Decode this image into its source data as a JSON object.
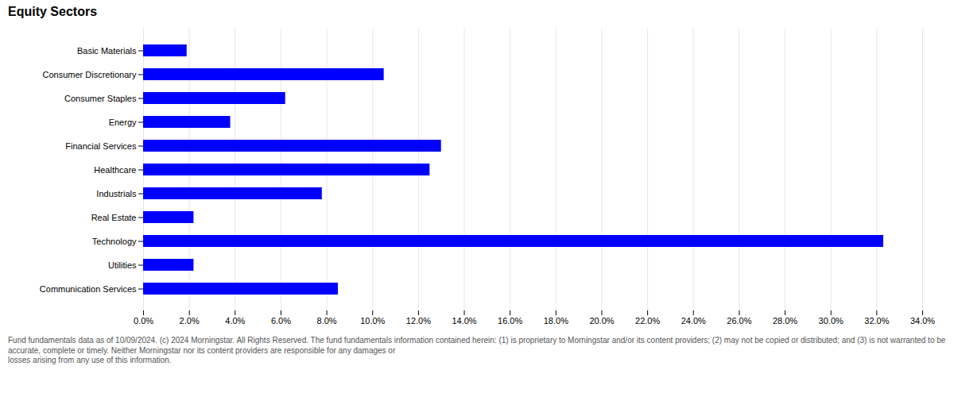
{
  "chart_data": {
    "type": "bar",
    "orientation": "horizontal",
    "title": "Equity Sectors",
    "categories": [
      "Basic Materials",
      "Consumer Discretionary",
      "Consumer Staples",
      "Energy",
      "Financial Services",
      "Healthcare",
      "Industrials",
      "Real Estate",
      "Technology",
      "Utilities",
      "Communication Services"
    ],
    "values": [
      1.9,
      10.5,
      6.2,
      3.8,
      13.0,
      12.5,
      7.8,
      2.2,
      32.3,
      2.2,
      8.5
    ],
    "color": "#0000ff",
    "xlim": [
      0,
      34.0
    ],
    "xticks": [
      {
        "value": 0,
        "label": "0.0%"
      },
      {
        "value": 2,
        "label": "2.0%"
      },
      {
        "value": 4,
        "label": "4.0%"
      },
      {
        "value": 6,
        "label": "6.0%"
      },
      {
        "value": 8,
        "label": "8.0%"
      },
      {
        "value": 10,
        "label": "10.0%"
      },
      {
        "value": 12,
        "label": "12.0%"
      },
      {
        "value": 14,
        "label": "14.0%"
      },
      {
        "value": 16,
        "label": "16.0%"
      },
      {
        "value": 18,
        "label": "18.0%"
      },
      {
        "value": 20,
        "label": "20.0%"
      },
      {
        "value": 22,
        "label": "22.0%"
      },
      {
        "value": 24,
        "label": "24.0%"
      },
      {
        "value": 26,
        "label": "26.0%"
      },
      {
        "value": 28,
        "label": "28.0%"
      },
      {
        "value": 30,
        "label": "30.0%"
      },
      {
        "value": 32,
        "label": "32.0%"
      },
      {
        "value": 34,
        "label": "34.0%"
      }
    ],
    "grid": true,
    "annotations": [
      "Fund fundamentals data as of 10/09/2024. (c) 2024 Morningstar. All Rights Reserved. The fund fundamentals information contained herein: (1) is proprietary to Morningstar and/or its content providers; (2) may not be copied or distributed; and (3) is not warranted to be accurate, complete or timely. Neither Morningstar nor its content providers are responsible for any damages or\nlosses arising from any use of this information."
    ]
  }
}
